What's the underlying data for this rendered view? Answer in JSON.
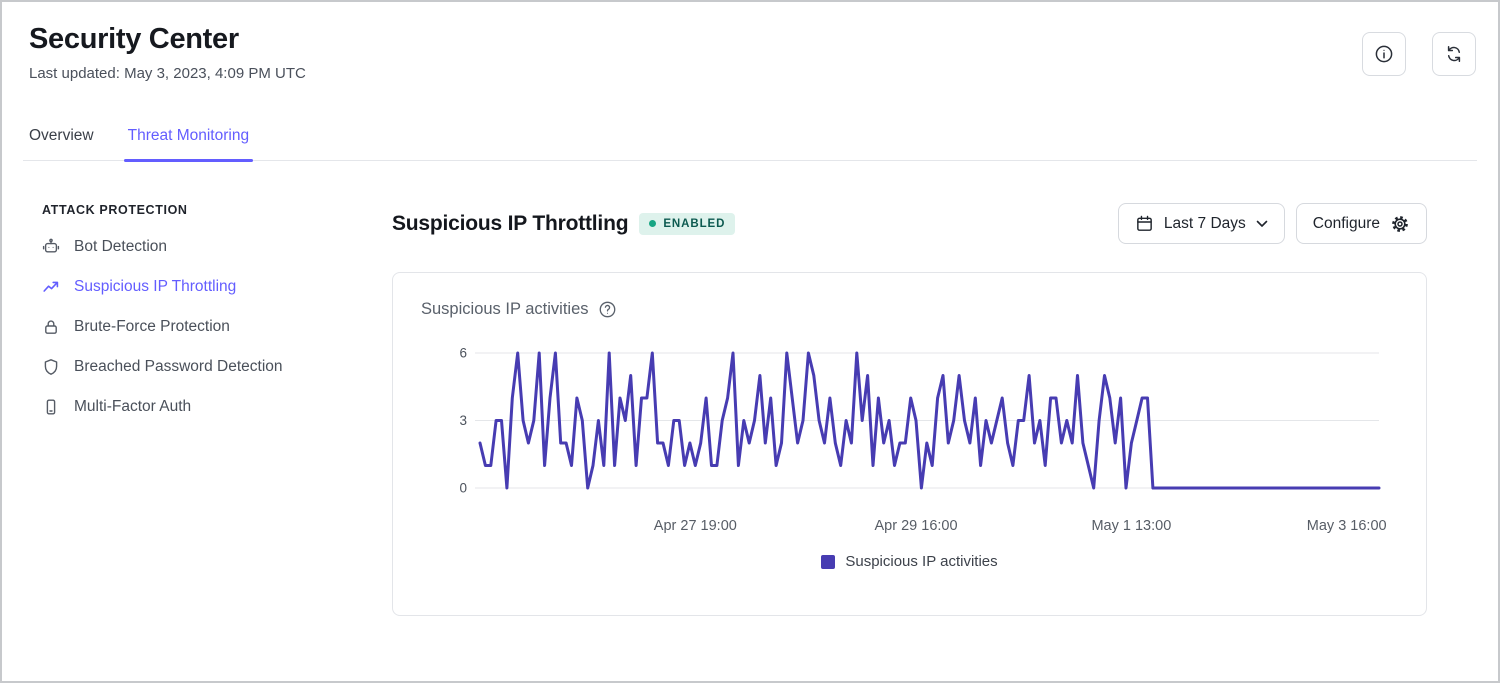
{
  "header": {
    "title": "Security Center",
    "last_updated": "Last updated: May 3, 2023, 4:09 PM UTC"
  },
  "tabs": [
    {
      "label": "Overview"
    },
    {
      "label": "Threat Monitoring"
    }
  ],
  "sidebar": {
    "heading": "ATTACK PROTECTION",
    "items": [
      {
        "label": "Bot Detection",
        "icon": "robot-icon"
      },
      {
        "label": "Suspicious IP Throttling",
        "icon": "trend-up-icon"
      },
      {
        "label": "Brute-Force Protection",
        "icon": "lock-icon"
      },
      {
        "label": "Breached Password Detection",
        "icon": "shield-icon"
      },
      {
        "label": "Multi-Factor Auth",
        "icon": "phone-icon"
      }
    ]
  },
  "main": {
    "title": "Suspicious IP Throttling",
    "status_badge": "ENABLED",
    "date_range_button": "Last 7 Days",
    "configure_button": "Configure",
    "card_title": "Suspicious IP activities"
  },
  "colors": {
    "accent": "#635dff",
    "line": "#473cb2",
    "badge_bg": "#def2ec",
    "badge_text": "#0d5a50",
    "badge_dot": "#17a583"
  },
  "chart_data": {
    "type": "line",
    "title": "Suspicious IP activities",
    "ylabel": "",
    "xlabel": "",
    "ylim": [
      0,
      6
    ],
    "yticks": [
      0,
      3,
      6
    ],
    "grid": "horizontal",
    "legend_position": "bottom",
    "legend_label": "Suspicious IP activities",
    "xticks": [
      "Apr 27 19:00",
      "Apr 29 16:00",
      "May 1 13:00",
      "May 3 16:00"
    ],
    "xtick_indices": [
      40,
      81,
      121,
      161
    ],
    "series": [
      {
        "name": "Suspicious IP activities",
        "color": "#473cb2",
        "values": [
          2,
          1,
          1,
          3,
          3,
          0,
          4,
          6,
          3,
          2,
          3,
          6,
          1,
          4,
          6,
          2,
          2,
          1,
          4,
          3,
          0,
          1,
          3,
          1,
          6,
          1,
          4,
          3,
          5,
          1,
          4,
          4,
          6,
          2,
          2,
          1,
          3,
          3,
          1,
          2,
          1,
          2,
          4,
          1,
          1,
          3,
          4,
          6,
          1,
          3,
          2,
          3,
          5,
          2,
          4,
          1,
          2,
          6,
          4,
          2,
          3,
          6,
          5,
          3,
          2,
          4,
          2,
          1,
          3,
          2,
          6,
          3,
          5,
          1,
          4,
          2,
          3,
          1,
          2,
          2,
          4,
          3,
          0,
          2,
          1,
          4,
          5,
          2,
          3,
          5,
          3,
          2,
          4,
          1,
          3,
          2,
          3,
          4,
          2,
          1,
          3,
          3,
          5,
          2,
          3,
          1,
          4,
          4,
          2,
          3,
          2,
          5,
          2,
          1,
          0,
          3,
          5,
          4,
          2,
          4,
          0,
          2,
          3,
          4,
          4,
          0,
          0,
          0,
          0,
          0,
          0,
          0,
          0,
          0,
          0,
          0,
          0,
          0,
          0,
          0,
          0,
          0,
          0,
          0,
          0,
          0,
          0,
          0,
          0,
          0,
          0,
          0,
          0,
          0,
          0,
          0,
          0,
          0,
          0,
          0,
          0,
          0,
          0,
          0,
          0,
          0,
          0,
          0
        ]
      }
    ]
  }
}
